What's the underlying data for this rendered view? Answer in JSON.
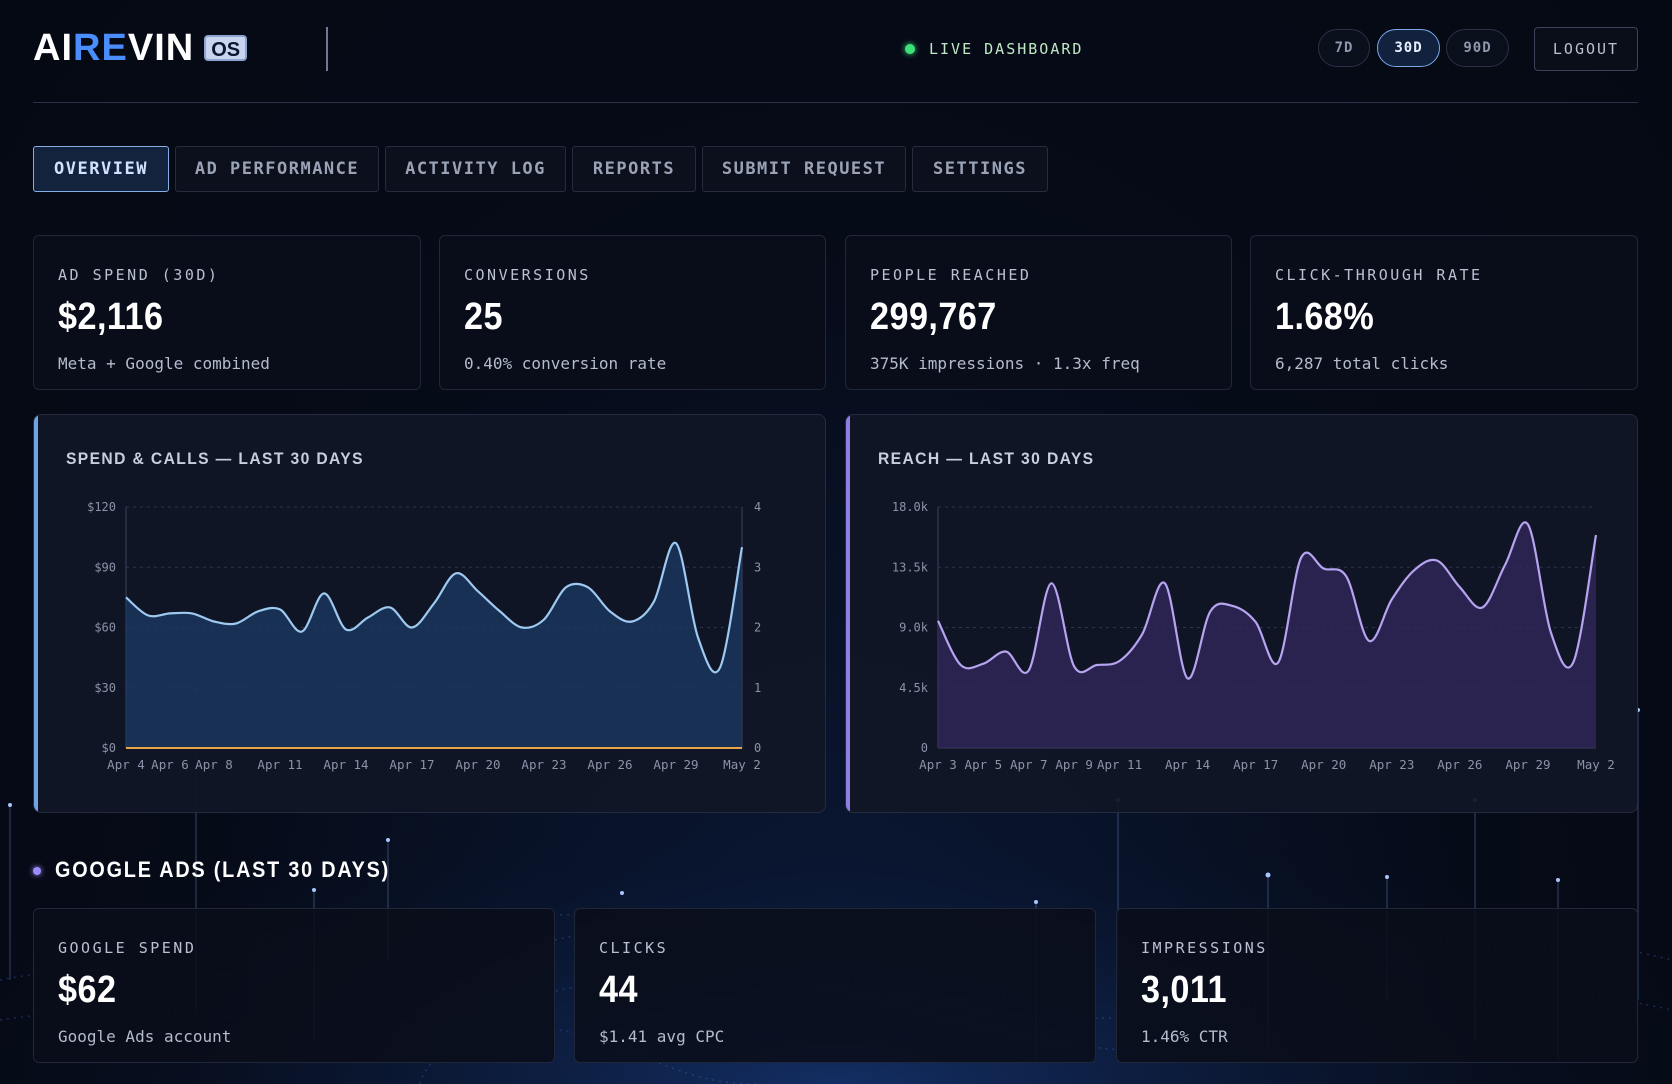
{
  "header": {
    "logo_text": "AIREVIN",
    "logo_badge": "OS",
    "live_label": "LIVE DASHBOARD",
    "ranges": [
      {
        "label": "7D",
        "active": false
      },
      {
        "label": "30D",
        "active": true
      },
      {
        "label": "90D",
        "active": false
      }
    ],
    "logout_label": "LOGOUT"
  },
  "tabs": [
    {
      "label": "OVERVIEW",
      "active": true
    },
    {
      "label": "AD PERFORMANCE",
      "active": false
    },
    {
      "label": "ACTIVITY LOG",
      "active": false
    },
    {
      "label": "REPORTS",
      "active": false
    },
    {
      "label": "SUBMIT REQUEST",
      "active": false
    },
    {
      "label": "SETTINGS",
      "active": false
    }
  ],
  "stats": [
    {
      "label": "AD SPEND (30D)",
      "value": "$2,116",
      "sub": "Meta + Google combined"
    },
    {
      "label": "CONVERSIONS",
      "value": "25",
      "sub": "0.40% conversion rate"
    },
    {
      "label": "PEOPLE REACHED",
      "value": "299,767",
      "sub": "375K impressions · 1.3x freq"
    },
    {
      "label": "CLICK-THROUGH RATE",
      "value": "1.68%",
      "sub": "6,287 total clicks"
    }
  ],
  "charts": {
    "spend_title": "SPEND & CALLS — LAST 30 DAYS",
    "reach_title": "REACH — LAST 30 DAYS"
  },
  "google_section": {
    "title": "GOOGLE ADS (LAST 30 DAYS)",
    "stats": [
      {
        "label": "GOOGLE SPEND",
        "value": "$62",
        "sub": "Google Ads account"
      },
      {
        "label": "CLICKS",
        "value": "44",
        "sub": "$1.41 avg CPC"
      },
      {
        "label": "IMPRESSIONS",
        "value": "3,011",
        "sub": "1.46% CTR"
      }
    ]
  },
  "colors": {
    "spend_line": "#9ec9f0",
    "spend_fill": "#1b3a63",
    "calls_line": "#e8a64a",
    "reach_line": "#b7a4f0",
    "reach_fill": "#33285e",
    "spend_edge": "#6fa4e8",
    "reach_edge": "#8f7fe0"
  },
  "chart_data": [
    {
      "type": "area",
      "title": "SPEND & CALLS — LAST 30 DAYS",
      "x_tick_labels": [
        "Apr 4",
        "Apr 6",
        "Apr 8",
        "Apr 11",
        "Apr 14",
        "Apr 17",
        "Apr 20",
        "Apr 23",
        "Apr 26",
        "Apr 29",
        "May 2"
      ],
      "x": [
        "Apr 4",
        "Apr 5",
        "Apr 6",
        "Apr 7",
        "Apr 8",
        "Apr 9",
        "Apr 10",
        "Apr 11",
        "Apr 12",
        "Apr 13",
        "Apr 14",
        "Apr 15",
        "Apr 16",
        "Apr 17",
        "Apr 18",
        "Apr 19",
        "Apr 20",
        "Apr 21",
        "Apr 22",
        "Apr 23",
        "Apr 24",
        "Apr 25",
        "Apr 26",
        "Apr 27",
        "Apr 28",
        "Apr 29",
        "Apr 30",
        "May 1",
        "May 2"
      ],
      "series": [
        {
          "axis": "left",
          "values": [
            75,
            66,
            67,
            67,
            63,
            62,
            68,
            69,
            58,
            77,
            59,
            65,
            70,
            60,
            72,
            87,
            78,
            68,
            60,
            64,
            80,
            80,
            68,
            63,
            73,
            102,
            55,
            40,
            100
          ]
        },
        {
          "axis": "right",
          "values": [
            0,
            0,
            0,
            0,
            0,
            0,
            0,
            0,
            0,
            0,
            0,
            0,
            0,
            0,
            0,
            0,
            0,
            0,
            0,
            0,
            0,
            0,
            0,
            0,
            0,
            0,
            0,
            0,
            0
          ]
        }
      ],
      "y_left": {
        "ticks": [
          "$0",
          "$30",
          "$60",
          "$90",
          "$120"
        ],
        "range": [
          0,
          120
        ]
      },
      "y_right": {
        "ticks": [
          "0",
          "1",
          "2",
          "3",
          "4"
        ],
        "range": [
          0,
          4
        ]
      }
    },
    {
      "type": "area",
      "title": "REACH — LAST 30 DAYS",
      "x_tick_labels": [
        "Apr 3",
        "Apr 5",
        "Apr 7",
        "Apr 9",
        "Apr 11",
        "Apr 14",
        "Apr 17",
        "Apr 20",
        "Apr 23",
        "Apr 26",
        "Apr 29",
        "May 2"
      ],
      "x": [
        "Apr 3",
        "Apr 4",
        "Apr 5",
        "Apr 6",
        "Apr 7",
        "Apr 8",
        "Apr 9",
        "Apr 10",
        "Apr 11",
        "Apr 12",
        "Apr 13",
        "Apr 14",
        "Apr 15",
        "Apr 16",
        "Apr 17",
        "Apr 18",
        "Apr 19",
        "Apr 20",
        "Apr 21",
        "Apr 22",
        "Apr 23",
        "Apr 24",
        "Apr 25",
        "Apr 26",
        "Apr 27",
        "Apr 28",
        "Apr 29",
        "Apr 30",
        "May 1",
        "May 2"
      ],
      "series": [
        {
          "values": [
            9500,
            6200,
            6300,
            7200,
            5800,
            12300,
            6100,
            6200,
            6500,
            8500,
            12300,
            5200,
            10200,
            10600,
            9400,
            6400,
            14200,
            13400,
            12800,
            8000,
            11100,
            13300,
            14000,
            12000,
            10500,
            13700,
            16700,
            8700,
            6400,
            15900
          ]
        }
      ],
      "y_left": {
        "ticks": [
          "0",
          "4.5k",
          "9.0k",
          "13.5k",
          "18.0k"
        ],
        "range": [
          0,
          18000
        ]
      }
    }
  ]
}
